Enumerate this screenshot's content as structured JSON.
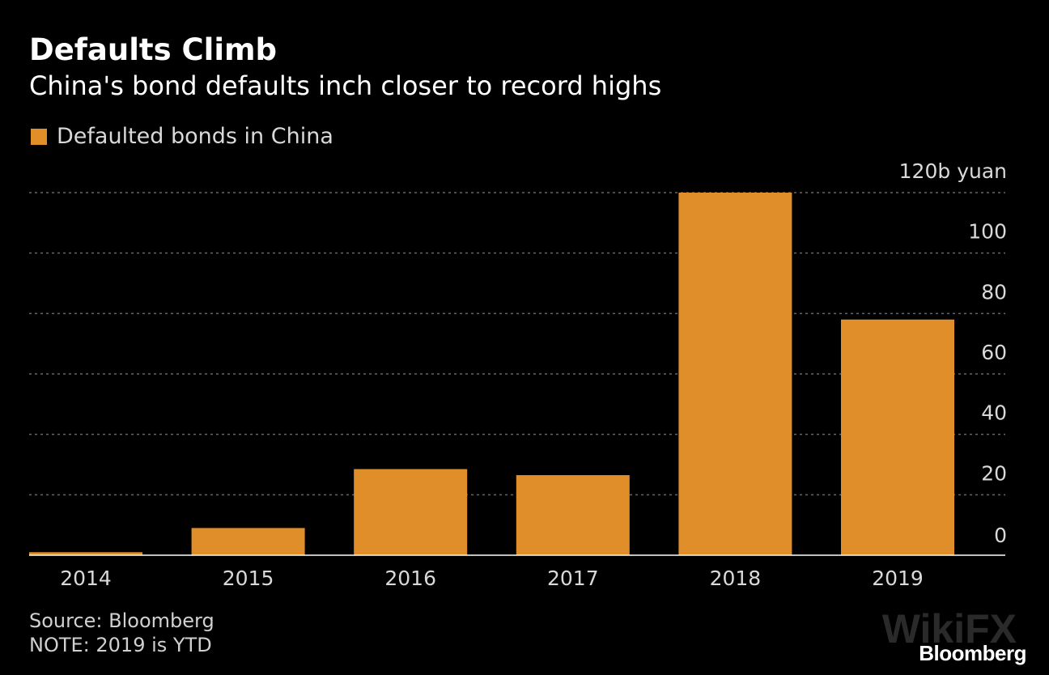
{
  "title": "Defaults Climb",
  "subtitle": "China's bond defaults inch closer to record highs",
  "source": "Source: Bloomberg",
  "note": "NOTE: 2019 is YTD",
  "brand": "Bloomberg",
  "watermark": "WikiFX",
  "colors": {
    "bar": "#e08e2a",
    "background": "#000000",
    "grid": "#666666",
    "axis_text": "#d9d9d9"
  },
  "chart_data": {
    "type": "bar",
    "title": "Defaults Climb",
    "subtitle": "China's bond defaults inch closer to record highs",
    "legend": [
      "Defaulted bonds in China"
    ],
    "legend_position": "top-left",
    "categories": [
      "2014",
      "2015",
      "2016",
      "2017",
      "2018",
      "2019"
    ],
    "series": [
      {
        "name": "Defaulted bonds in China",
        "values": [
          1,
          9,
          28.5,
          26.5,
          120,
          78
        ]
      }
    ],
    "ylabel": "",
    "xlabel": "",
    "y_unit_label": "120b yuan",
    "ylim": [
      0,
      120
    ],
    "yticks": [
      0,
      20,
      40,
      60,
      80,
      100,
      120
    ],
    "ytick_labels": [
      "0",
      "20",
      "40",
      "60",
      "80",
      "100",
      "120b yuan"
    ],
    "yaxis_position": "right",
    "grid": true
  }
}
